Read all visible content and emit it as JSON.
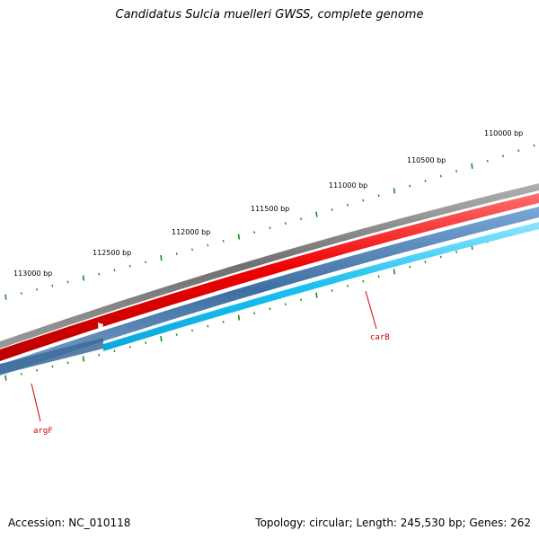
{
  "title": "Candidatus Sulcia muelleri GWSS, complete genome",
  "footer": {
    "accession": "Accession: NC_010118",
    "summary": "Topology: circular; Length: 245,530 bp; Genes: 262"
  },
  "scale": {
    "labels": [
      "110000 bp",
      "110500 bp",
      "111000 bp",
      "111500 bp",
      "112000 bp",
      "112500 bp",
      "113000 bp"
    ]
  },
  "genes": [
    {
      "name": "carB"
    },
    {
      "name": "argF"
    }
  ],
  "colors": {
    "backbone": "#7f7f7f",
    "forward_cds": "#ee0000",
    "reverse_cds": "#4a7fb0",
    "gc_track": "#1ec8f5",
    "ticks": "#228b22",
    "gene_label": "#cc0000"
  }
}
